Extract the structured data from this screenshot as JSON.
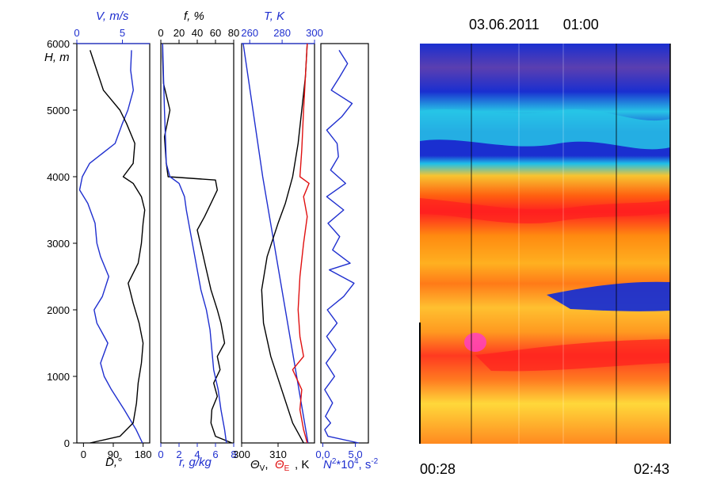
{
  "chart_data": [
    {
      "type": "line",
      "panel": "wind",
      "ylabel": "H, m",
      "ylim": [
        0,
        6000
      ],
      "yticks": [
        "0",
        "1000",
        "2000",
        "3000",
        "4000",
        "5000",
        "6000"
      ],
      "x_top_label": "V, m/s",
      "x_top_ticks": [
        "0",
        "5"
      ],
      "x_top_range": [
        0,
        8
      ],
      "x_bottom_label": "D,°",
      "x_bottom_ticks": [
        "0",
        "90",
        "180"
      ],
      "x_bottom_range": [
        -20,
        200
      ],
      "colors": {
        "speed": "#1f2fcf",
        "direction": "#000000"
      },
      "series": [
        {
          "name": "V",
          "axis": "top",
          "color": "#1f2fcf",
          "h": [
            0,
            200,
            500,
            800,
            1000,
            1200,
            1500,
            1800,
            2000,
            2200,
            2500,
            2800,
            3000,
            3300,
            3600,
            3800,
            4000,
            4200,
            4500,
            4800,
            5000,
            5300,
            5600,
            5900
          ],
          "values": [
            7.2,
            6.5,
            5.2,
            3.8,
            3.0,
            2.6,
            3.4,
            2.2,
            1.9,
            2.8,
            3.5,
            2.6,
            2.2,
            2.0,
            1.2,
            0.3,
            0.6,
            1.4,
            4.2,
            5.0,
            5.6,
            6.2,
            5.9,
            6.0
          ]
        },
        {
          "name": "D",
          "axis": "bottom",
          "color": "#000000",
          "h": [
            0,
            100,
            300,
            600,
            900,
            1200,
            1500,
            1800,
            2100,
            2400,
            2700,
            3000,
            3300,
            3500,
            3700,
            3900,
            4000,
            4200,
            4500,
            4800,
            5000,
            5300,
            5600,
            5900
          ],
          "values": [
            20,
            110,
            150,
            160,
            165,
            175,
            180,
            168,
            150,
            135,
            165,
            175,
            180,
            185,
            175,
            150,
            120,
            150,
            155,
            130,
            110,
            60,
            40,
            20
          ]
        }
      ]
    },
    {
      "type": "line",
      "panel": "humidity",
      "ylim": [
        0,
        6000
      ],
      "x_top_label": "f, %",
      "x_top_ticks": [
        "0",
        "20",
        "40",
        "60",
        "80"
      ],
      "x_top_range": [
        0,
        80
      ],
      "x_bottom_label": "r, g/kg",
      "x_bottom_ticks": [
        "0",
        "2",
        "4",
        "6",
        "8"
      ],
      "x_bottom_range": [
        0,
        8
      ],
      "series": [
        {
          "name": "f",
          "axis": "top",
          "color": "#000000",
          "h": [
            0,
            100,
            300,
            500,
            700,
            900,
            1100,
            1300,
            1500,
            1800,
            2000,
            2300,
            2600,
            2900,
            3200,
            3400,
            3600,
            3800,
            3950,
            4000,
            4200,
            4600,
            5000,
            5400,
            5800,
            6000
          ],
          "values": [
            78,
            60,
            55,
            56,
            62,
            58,
            65,
            62,
            70,
            66,
            62,
            55,
            50,
            45,
            40,
            48,
            55,
            62,
            60,
            8,
            6,
            4,
            10,
            3,
            2,
            2
          ]
        },
        {
          "name": "r",
          "axis": "bottom",
          "color": "#1f2fcf",
          "h": [
            0,
            200,
            500,
            800,
            1100,
            1400,
            1700,
            2000,
            2300,
            2600,
            2900,
            3200,
            3500,
            3700,
            3900,
            4000,
            4200,
            4600,
            5000,
            5500,
            6000
          ],
          "values": [
            7.2,
            7.0,
            6.6,
            6.3,
            5.8,
            5.6,
            5.4,
            5.0,
            4.4,
            4.0,
            3.6,
            3.2,
            2.8,
            2.6,
            2.0,
            1.0,
            0.6,
            0.5,
            0.4,
            0.3,
            0.2
          ]
        }
      ]
    },
    {
      "type": "line",
      "panel": "temperature",
      "ylim": [
        0,
        6000
      ],
      "x_top_label": "T, K",
      "x_top_ticks": [
        "260",
        "280",
        "300"
      ],
      "x_top_range": [
        255,
        300
      ],
      "x_bottom_label": "Θ_V, Θ_E, K",
      "x_bottom_ticks": [
        "300",
        "310"
      ],
      "x_bottom_range": [
        300,
        320
      ],
      "series": [
        {
          "name": "T",
          "axis": "top",
          "color": "#1f2fcf",
          "h": [
            0,
            1000,
            2000,
            3000,
            4000,
            5000,
            6000
          ],
          "values": [
            296,
            289,
            282,
            275,
            268,
            262,
            256
          ]
        },
        {
          "name": "Θv",
          "axis": "bottom",
          "color": "#000000",
          "h": [
            0,
            300,
            800,
            1300,
            1800,
            2300,
            2800,
            3300,
            3600,
            4000,
            4500,
            5000,
            5500,
            6000
          ],
          "values": [
            317,
            314,
            311,
            308,
            306,
            305.5,
            307,
            310,
            312,
            314,
            315.5,
            316.5,
            317.5,
            318
          ]
        },
        {
          "name": "Θe",
          "axis": "bottom",
          "color": "#e01010",
          "h": [
            0,
            200,
            500,
            800,
            1100,
            1300,
            1600,
            2000,
            2500,
            3000,
            3400,
            3700,
            3900,
            4000,
            4400,
            5000,
            5500,
            6000
          ],
          "values": [
            318,
            317,
            316,
            316.5,
            314,
            317,
            316,
            315.5,
            316,
            317,
            318,
            317,
            318.5,
            316,
            316.5,
            317,
            317.5,
            318
          ]
        }
      ]
    },
    {
      "type": "line",
      "panel": "stability",
      "ylim": [
        0,
        6000
      ],
      "x_bottom_label": "N²*10⁴, s⁻²",
      "x_bottom_ticks": [
        "0,0",
        "5,0"
      ],
      "x_bottom_range": [
        -0.3,
        7
      ],
      "series": [
        {
          "name": "N2",
          "axis": "bottom",
          "color": "#1f2fcf",
          "h": [
            0,
            100,
            200,
            300,
            400,
            600,
            800,
            1000,
            1200,
            1400,
            1600,
            1800,
            2000,
            2200,
            2400,
            2600,
            2700,
            2900,
            3100,
            3300,
            3500,
            3700,
            3900,
            4100,
            4300,
            4500,
            4700,
            4900,
            5100,
            5300,
            5500,
            5700,
            5900
          ],
          "values": [
            5.5,
            0.8,
            0.3,
            1.2,
            0.4,
            1.5,
            0.3,
            1.8,
            0.5,
            2.0,
            0.6,
            2.2,
            0.7,
            3.2,
            4.8,
            1.0,
            4.2,
            1.5,
            2.6,
            0.8,
            3.2,
            0.6,
            3.5,
            1.2,
            2.4,
            2.2,
            0.6,
            2.9,
            4.5,
            1.3,
            2.6,
            3.8,
            2.5
          ]
        }
      ]
    },
    {
      "type": "heatmap",
      "panel": "sodar-echogram",
      "title": "03.06.2011      01:00",
      "x_start_label": "00:28",
      "x_end_label": "02:43"
    }
  ]
}
